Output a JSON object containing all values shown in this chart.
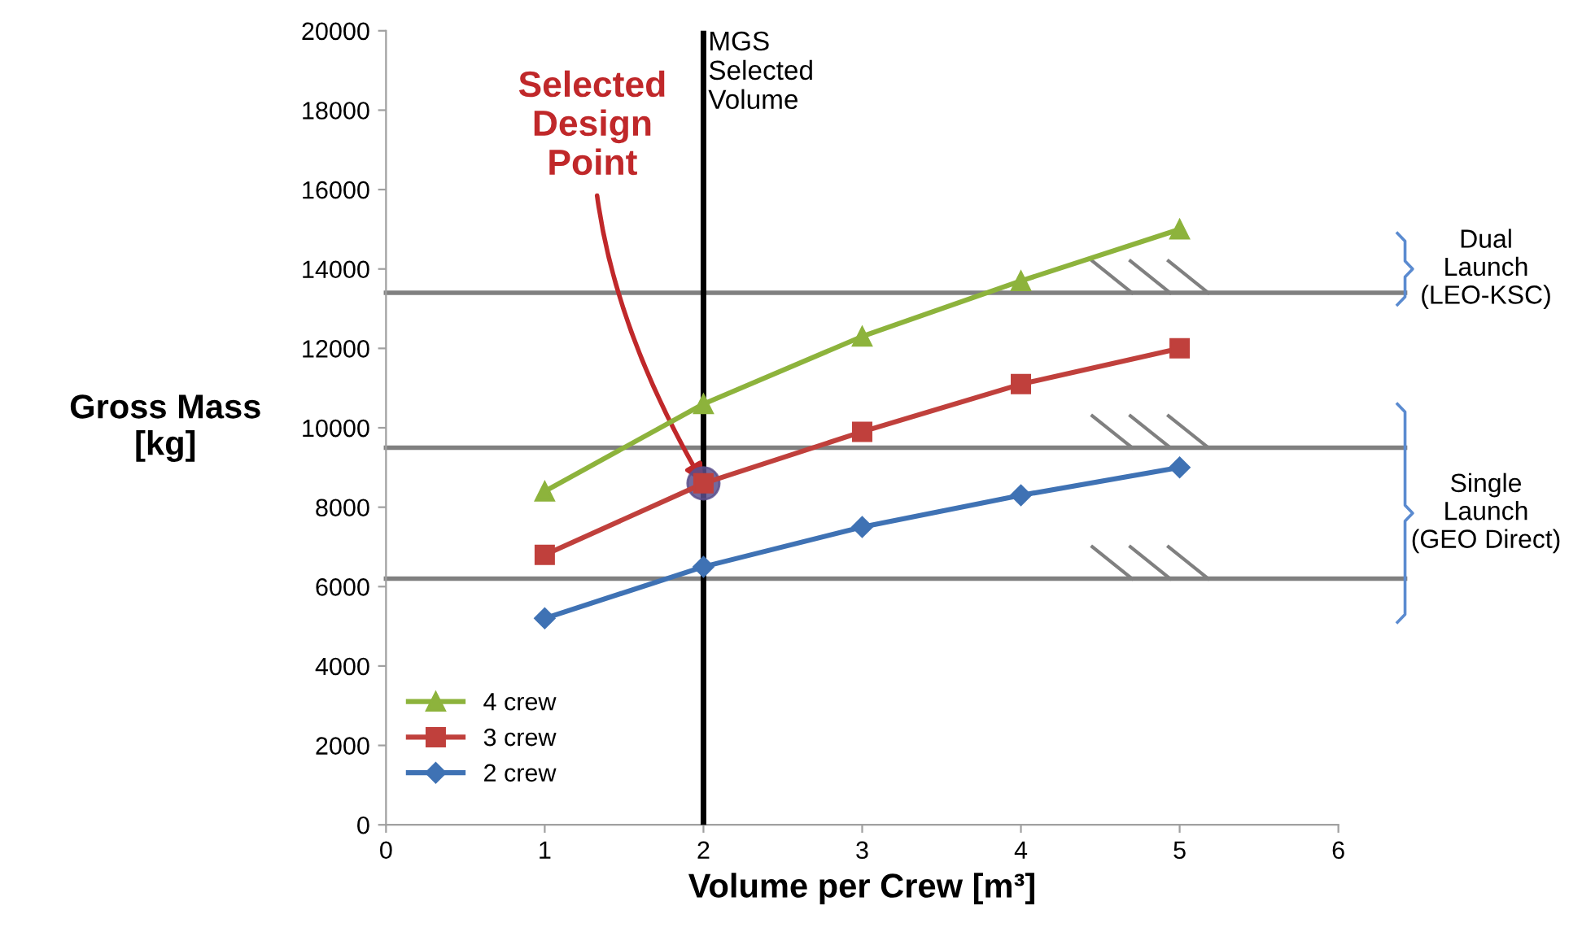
{
  "chart_data": {
    "type": "line",
    "xlabel": "Volume per Crew [m³]",
    "ylabel": "Gross Mass\n[kg]",
    "x": [
      1,
      2,
      3,
      4,
      5
    ],
    "series": [
      {
        "name": "4 crew",
        "color": "#8db33c",
        "marker": "triangle",
        "values": [
          8400,
          10600,
          12300,
          13700,
          15000
        ]
      },
      {
        "name": "3 crew",
        "color": "#c0403c",
        "marker": "square",
        "values": [
          6800,
          8600,
          9900,
          11100,
          12000
        ]
      },
      {
        "name": "2 crew",
        "color": "#3f72b4",
        "marker": "diamond",
        "values": [
          5200,
          6500,
          7500,
          8300,
          9000
        ]
      },
      {
        "type": "scatter",
        "color": "#5a4f8c",
        "marker": "circle",
        "x": [
          2
        ],
        "values": [
          8600
        ]
      }
    ],
    "xlim": [
      0,
      6
    ],
    "xticks": [
      0,
      1,
      2,
      3,
      4,
      5,
      6
    ],
    "ylim": [
      0,
      20000
    ],
    "yticks": [
      0,
      2000,
      4000,
      6000,
      8000,
      10000,
      12000,
      14000,
      16000,
      18000,
      20000
    ],
    "grid": false,
    "legend": "bottom left",
    "ref_lines": [
      {
        "axis": "x",
        "value": 2,
        "label": "MGS\nSelected\nVolume",
        "color": "#000000"
      },
      {
        "axis": "y",
        "value": 13400,
        "color": "#808080"
      },
      {
        "axis": "y",
        "value": 9500,
        "color": "#808080"
      },
      {
        "axis": "y",
        "value": 6200,
        "color": "#808080"
      }
    ],
    "annotations": [
      {
        "text": "Selected\nDesign\nPoint",
        "x": 2,
        "y": 8600
      },
      "Dual\nLaunch\n(LEO-KSC)",
      "Single\nLaunch\n(GEO Direct)"
    ]
  }
}
